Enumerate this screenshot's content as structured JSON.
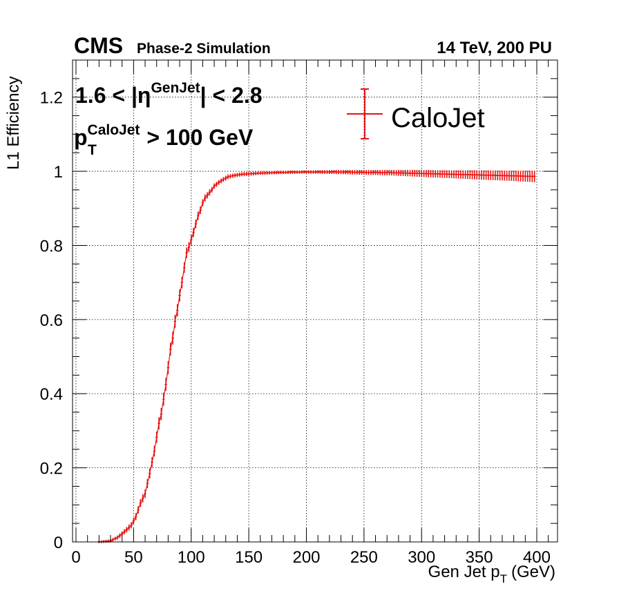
{
  "header": {
    "experiment": "CMS",
    "subtitle": "Phase-2 Simulation",
    "conditions": "14 TeV, 200 PU"
  },
  "annotations": {
    "eta_low": "1.6 < |η",
    "eta_sup": "GenJet",
    "eta_high": "| < 2.8",
    "pt_main": "p",
    "pt_sub": "T",
    "pt_sup": "CaloJet",
    "pt_cut": "> 100 GeV"
  },
  "colors": {
    "series": "#e8110f",
    "axes": "#000000"
  },
  "chart_data": {
    "type": "scatter",
    "title": "",
    "xlabel": {
      "main": "Gen Jet p",
      "sub": "T",
      "unit": "(GeV)"
    },
    "ylabel": "L1 Efficiency",
    "xlim": [
      -3,
      418
    ],
    "ylim": [
      0,
      1.3
    ],
    "grid": true,
    "legend": {
      "position": "top-right",
      "entries": [
        "CaloJet"
      ]
    },
    "x_ticks": [
      0,
      50,
      100,
      150,
      200,
      250,
      300,
      350,
      400
    ],
    "y_ticks": [
      0,
      0.2,
      0.4,
      0.6,
      0.8,
      1,
      1.2
    ],
    "y_tick_labels": [
      "0",
      "0.2",
      "0.4",
      "0.6",
      "0.8",
      "1",
      "1.2"
    ],
    "bin_width": 2,
    "series": [
      {
        "name": "CaloJet",
        "x": [
          20,
          30,
          36,
          40,
          44,
          48,
          52,
          56,
          60,
          64,
          68,
          72,
          74,
          76,
          78,
          80,
          82,
          84,
          86,
          88,
          90,
          92,
          94,
          96,
          98,
          100,
          102,
          104,
          106,
          108,
          110,
          112,
          114,
          116,
          118,
          120,
          124,
          128,
          132,
          136,
          140,
          144,
          150,
          160,
          170,
          180,
          200,
          225,
          250,
          275,
          300,
          325,
          350,
          375,
          399
        ],
        "y": [
          0.0,
          0.003,
          0.012,
          0.022,
          0.033,
          0.045,
          0.068,
          0.105,
          0.13,
          0.185,
          0.245,
          0.32,
          0.345,
          0.385,
          0.425,
          0.47,
          0.52,
          0.55,
          0.595,
          0.625,
          0.665,
          0.7,
          0.74,
          0.78,
          0.795,
          0.815,
          0.835,
          0.858,
          0.88,
          0.895,
          0.915,
          0.928,
          0.935,
          0.943,
          0.95,
          0.96,
          0.97,
          0.978,
          0.985,
          0.988,
          0.99,
          0.992,
          0.993,
          0.995,
          0.996,
          0.997,
          0.998,
          0.998,
          0.997,
          0.996,
          0.994,
          0.992,
          0.99,
          0.988,
          0.986
        ],
        "err": [
          0.002,
          0.003,
          0.004,
          0.005,
          0.006,
          0.007,
          0.008,
          0.009,
          0.01,
          0.012,
          0.013,
          0.015,
          0.015,
          0.016,
          0.016,
          0.016,
          0.016,
          0.016,
          0.016,
          0.015,
          0.015,
          0.014,
          0.013,
          0.013,
          0.012,
          0.012,
          0.011,
          0.01,
          0.01,
          0.009,
          0.008,
          0.008,
          0.007,
          0.007,
          0.006,
          0.006,
          0.005,
          0.005,
          0.005,
          0.004,
          0.004,
          0.004,
          0.004,
          0.003,
          0.003,
          0.003,
          0.003,
          0.004,
          0.005,
          0.006,
          0.008,
          0.009,
          0.011,
          0.012,
          0.014
        ]
      }
    ]
  }
}
